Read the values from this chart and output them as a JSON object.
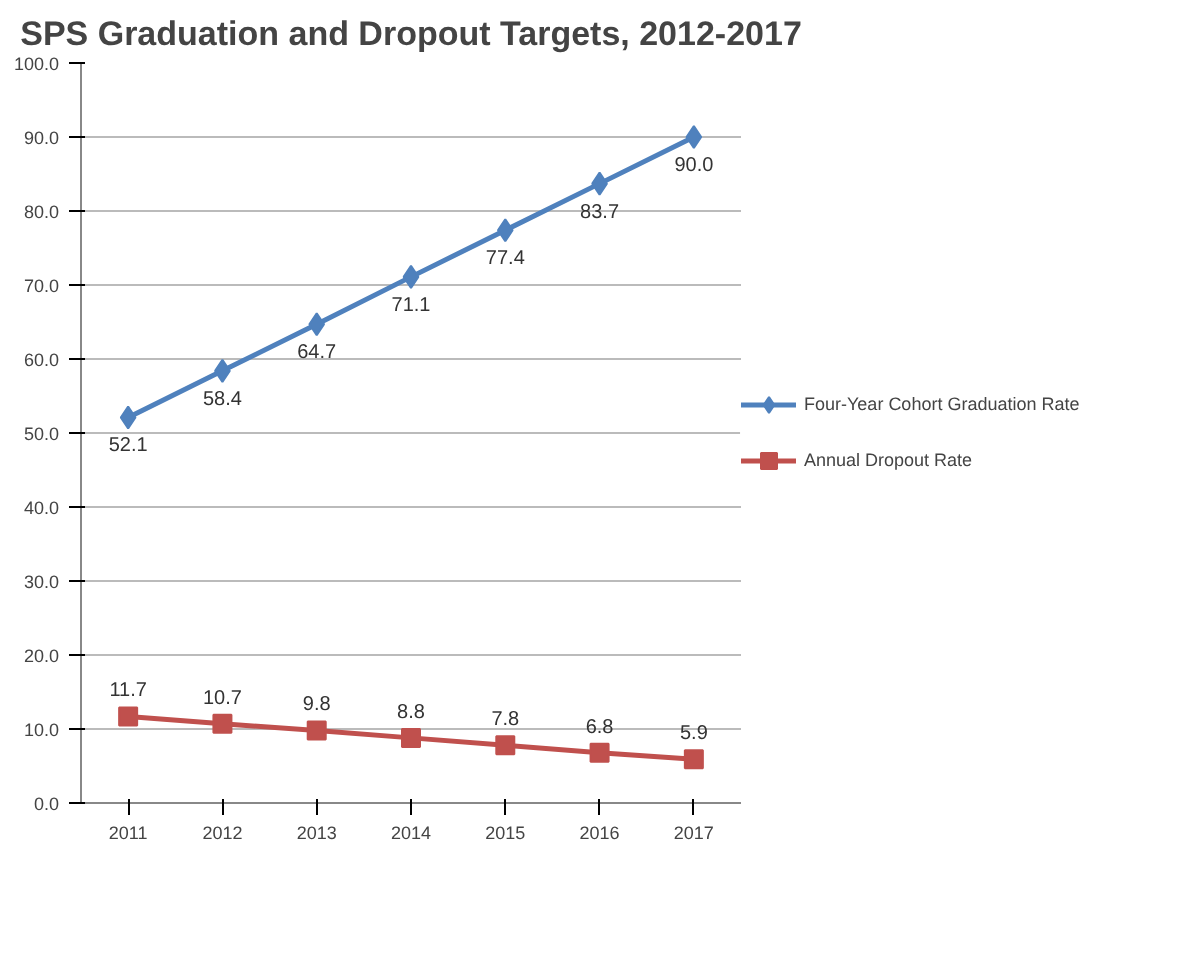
{
  "chart_data": {
    "type": "line",
    "title": "SPS Graduation and Dropout Targets, 2012-2017",
    "categories": [
      "2011",
      "2012",
      "2013",
      "2014",
      "2015",
      "2016",
      "2017"
    ],
    "series": [
      {
        "name": "Four-Year Cohort Graduation Rate",
        "color": "#4f81bd",
        "marker": "diamond",
        "values": [
          52.1,
          58.4,
          64.7,
          71.1,
          77.4,
          83.7,
          90.0
        ],
        "value_labels": [
          "52.1",
          "58.4",
          "64.7",
          "71.1",
          "77.4",
          "83.7",
          "90.0"
        ]
      },
      {
        "name": "Annual Dropout Rate",
        "color": "#c0504d",
        "marker": "square",
        "values": [
          11.7,
          10.7,
          9.8,
          8.8,
          7.8,
          6.8,
          5.9
        ],
        "value_labels": [
          "11.7",
          "10.7",
          "9.8",
          "8.8",
          "7.8",
          "6.8",
          "5.9"
        ]
      }
    ],
    "ylim": [
      0,
      100
    ],
    "yticks": [
      {
        "value": 0,
        "label": "0.0"
      },
      {
        "value": 10,
        "label": "10.0"
      },
      {
        "value": 20,
        "label": "20.0"
      },
      {
        "value": 30,
        "label": "30.0"
      },
      {
        "value": 40,
        "label": "40.0"
      },
      {
        "value": 50,
        "label": "50.0"
      },
      {
        "value": 60,
        "label": "60.0"
      },
      {
        "value": 70,
        "label": "70.0"
      },
      {
        "value": 80,
        "label": "80.0"
      },
      {
        "value": 90,
        "label": "90.0"
      },
      {
        "value": 100,
        "label": "100.0"
      }
    ],
    "grid": "y",
    "legend": "right"
  }
}
